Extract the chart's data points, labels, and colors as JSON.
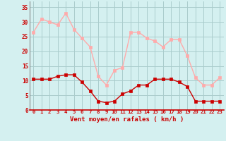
{
  "x": [
    0,
    1,
    2,
    3,
    4,
    5,
    6,
    7,
    8,
    9,
    10,
    11,
    12,
    13,
    14,
    15,
    16,
    17,
    18,
    19,
    20,
    21,
    22,
    23
  ],
  "wind_avg": [
    10.5,
    10.5,
    10.5,
    11.5,
    12,
    12,
    9.5,
    6.5,
    3,
    2.5,
    3,
    5.5,
    6.5,
    8.5,
    8.5,
    10.5,
    10.5,
    10.5,
    9.5,
    8,
    3,
    3,
    3,
    3
  ],
  "wind_gust": [
    26.5,
    31,
    30,
    29,
    33,
    27.5,
    24.5,
    21.5,
    11.5,
    8.5,
    13.5,
    14.5,
    26.5,
    26.5,
    24.5,
    23.5,
    21.5,
    24,
    24,
    18.5,
    11,
    8.5,
    8.5,
    11
  ],
  "avg_color": "#cc0000",
  "gust_color": "#ffaaaa",
  "bg_color": "#d4f0f0",
  "grid_color": "#aacccc",
  "xlabel": "Vent moyen/en rafales ( km/h )",
  "xlabel_color": "#cc0000",
  "tick_color": "#cc0000",
  "ylim": [
    0,
    37
  ],
  "yticks": [
    0,
    5,
    10,
    15,
    20,
    25,
    30,
    35
  ],
  "xlim": [
    -0.5,
    23.5
  ]
}
